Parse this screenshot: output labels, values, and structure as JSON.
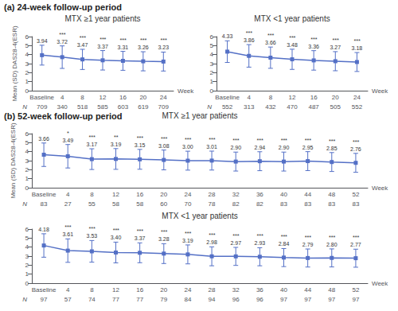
{
  "chart_data": [
    {
      "type": "line",
      "title": "(a) 24-week follow-up period",
      "subtitle": "MTX ≥1 year patients",
      "categories": [
        "Baseline",
        "4",
        "8",
        "12",
        "16",
        "20",
        "24"
      ],
      "values": [
        3.94,
        3.72,
        3.47,
        3.37,
        3.31,
        3.26,
        3.23
      ],
      "errors": [
        1.1,
        1.25,
        1.12,
        1.08,
        1.05,
        1.06,
        1.05
      ],
      "data_labels": true,
      "value_labels": [
        "3.94",
        "3.72",
        "3.47",
        "3.37",
        "3.31",
        "3.26",
        "3.23"
      ],
      "significance": [
        null,
        "***",
        "***",
        "***",
        "***",
        "***",
        "***"
      ],
      "n_label": "N",
      "n_values": [
        709,
        340,
        518,
        585,
        603,
        619,
        709
      ],
      "xlabel": "Week",
      "ylabel": "Mean (SD) DAS28-4(ESR)",
      "ylim": [
        0,
        6
      ],
      "yticks": [
        0,
        1,
        2,
        3,
        4,
        5,
        6
      ],
      "grid": false,
      "marker": "square"
    },
    {
      "type": "line",
      "subtitle": "MTX <1 year patients",
      "categories": [
        "Baseline",
        "4",
        "8",
        "12",
        "16",
        "20",
        "24"
      ],
      "values": [
        4.33,
        3.86,
        3.66,
        3.48,
        3.36,
        3.27,
        3.18
      ],
      "errors": [
        1.2,
        1.25,
        1.18,
        1.12,
        1.08,
        1.06,
        1.05
      ],
      "data_labels": true,
      "value_labels": [
        "4.33",
        "3.86",
        "3.66",
        "3.48",
        "3.36",
        "3.27",
        "3.18"
      ],
      "significance": [
        null,
        "***",
        "***",
        "***",
        "***",
        "***",
        "***"
      ],
      "n_label": "N",
      "n_values": [
        552,
        313,
        432,
        470,
        487,
        505,
        552
      ],
      "xlabel": "Week",
      "ylim": [
        0,
        6
      ],
      "yticks": [
        0,
        1,
        2,
        3,
        4,
        5,
        6
      ],
      "grid": false,
      "marker": "square"
    },
    {
      "type": "line",
      "title": "(b) 52-week follow-up period",
      "subtitle": "MTX ≥1 year patients",
      "categories": [
        "Baseline",
        "4",
        "8",
        "12",
        "16",
        "20",
        "24",
        "28",
        "32",
        "36",
        "40",
        "44",
        "48",
        "52"
      ],
      "values": [
        3.66,
        3.49,
        3.17,
        3.19,
        3.15,
        3.08,
        3.0,
        3.01,
        2.9,
        2.94,
        2.9,
        2.95,
        2.85,
        2.76
      ],
      "errors": [
        1.3,
        1.3,
        1.15,
        1.15,
        1.1,
        1.1,
        1.05,
        1.05,
        1.05,
        1.05,
        1.05,
        1.05,
        1.05,
        1.05
      ],
      "data_labels": true,
      "value_labels": [
        "3.66",
        "3.49",
        "3.17",
        "3.19",
        "3.15",
        "3.08",
        "3.00",
        "3.01",
        "2.90",
        "2.94",
        "2.90",
        "2.95",
        "2.85",
        "2.76"
      ],
      "significance": [
        null,
        "*",
        "***",
        "**",
        "***",
        "***",
        "***",
        "***",
        "***",
        "***",
        "***",
        "***",
        "***",
        "***"
      ],
      "n_label": "N",
      "n_values": [
        83,
        27,
        55,
        58,
        58,
        60,
        70,
        78,
        82,
        82,
        83,
        83,
        83,
        83
      ],
      "xlabel": "Week",
      "ylabel": "Mean (SD) DAS28-4(ESR)",
      "ylim": [
        0,
        6
      ],
      "yticks": [
        0,
        1,
        2,
        3,
        4,
        5,
        6
      ],
      "grid": false,
      "marker": "square"
    },
    {
      "type": "line",
      "subtitle": "MTX <1 year patients",
      "categories": [
        "Baseline",
        "4",
        "8",
        "12",
        "16",
        "20",
        "24",
        "28",
        "32",
        "36",
        "40",
        "44",
        "48",
        "52"
      ],
      "values": [
        4.18,
        3.61,
        3.53,
        3.4,
        3.37,
        3.28,
        3.19,
        2.98,
        2.97,
        2.93,
        2.84,
        2.79,
        2.8,
        2.77
      ],
      "errors": [
        1.3,
        1.3,
        1.2,
        1.15,
        1.1,
        1.1,
        1.05,
        1.05,
        1.0,
        1.0,
        1.0,
        1.0,
        1.0,
        1.0
      ],
      "data_labels": true,
      "value_labels": [
        "4.18",
        "3.61",
        "3.53",
        "3.40",
        "3.37",
        "3.28",
        "3.19",
        "2.98",
        "2.97",
        "2.93",
        "2.84",
        "2.79",
        "2.80",
        "2.77"
      ],
      "significance": [
        null,
        "***",
        "***",
        "***",
        "***",
        "***",
        "***",
        "***",
        "***",
        "***",
        "***",
        "***",
        "***",
        "***"
      ],
      "n_label": "N",
      "n_values": [
        97,
        57,
        74,
        77,
        77,
        79,
        84,
        94,
        96,
        96,
        97,
        97,
        97,
        97
      ],
      "xlabel": "Week",
      "ylim": [
        0,
        6
      ],
      "yticks": [
        0,
        1,
        2,
        3,
        4,
        5,
        6
      ],
      "grid": false,
      "marker": "square"
    }
  ]
}
